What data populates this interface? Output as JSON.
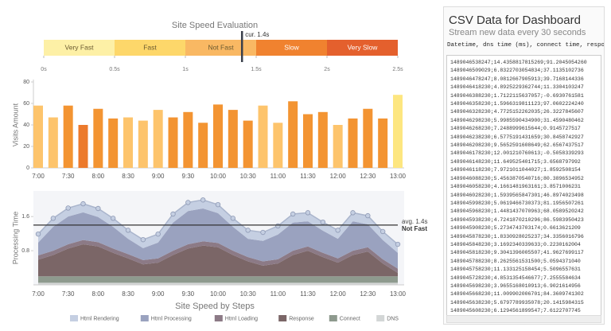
{
  "chart_data": [
    {
      "type": "bullet",
      "title": "Site Speed Evaluation",
      "ranges": [
        {
          "name": "Very Fast",
          "from": 0,
          "to": 0.5,
          "color": "#fdf0a6"
        },
        {
          "name": "Fast",
          "from": 0.5,
          "to": 1,
          "color": "#fdd76a"
        },
        {
          "name": "Not Fast",
          "from": 1,
          "to": 1.5,
          "color": "#f9b863"
        },
        {
          "name": "Slow",
          "from": 1.5,
          "to": 2,
          "color": "#f0822f"
        },
        {
          "name": "Very Slow",
          "from": 2,
          "to": 2.5,
          "color": "#e4602d"
        }
      ],
      "value": 1.4,
      "value_label": "cur. 1.4s",
      "marker_color": "#3a3f4a",
      "xlim": [
        0,
        2.5
      ],
      "xticks": [
        {
          "value": 0,
          "label": "0s"
        },
        {
          "value": 0.5,
          "label": "0.5s"
        },
        {
          "value": 1,
          "label": "1s"
        },
        {
          "value": 1.5,
          "label": "1.5s"
        },
        {
          "value": 2,
          "label": "2s"
        },
        {
          "value": 2.5,
          "label": "2.5s"
        }
      ]
    },
    {
      "type": "bar",
      "y_label": "Visits Amount",
      "categories": [
        "7:00",
        null,
        "7:30",
        null,
        "8:00",
        null,
        "8:30",
        null,
        "9:00",
        null,
        "9:30",
        null,
        "10:00",
        null,
        "10:30",
        null,
        "11:00",
        null,
        "11:30",
        null,
        "12:00",
        null,
        "12:30",
        null,
        "13:00"
      ],
      "values": [
        58,
        47,
        58,
        40,
        55,
        46,
        47,
        44,
        54,
        47,
        52,
        42,
        59,
        54,
        44,
        58,
        42,
        62,
        50,
        52,
        40,
        46,
        55,
        46,
        68
      ],
      "colors": [
        "#fdc46c",
        "#fdc46c",
        "#f39432",
        "#ec7a2c",
        "#f39432",
        "#f39432",
        "#fdc46c",
        "#fdc46c",
        "#fdc46c",
        "#f39432",
        "#f39432",
        "#f39432",
        "#f39432",
        "#f39432",
        "#f39432",
        "#fdc46c",
        "#fdc46c",
        "#f39432",
        "#f39432",
        "#f39432",
        "#fdc46c",
        "#f39432",
        "#f39432",
        "#f39432",
        "#fde680"
      ],
      "ylim": [
        0,
        80
      ],
      "yticks": [
        0,
        20,
        40,
        60,
        80
      ]
    },
    {
      "type": "area",
      "stacked": true,
      "title": "Site Speed by Steps",
      "y_label": "Processing Time",
      "categories": [
        "7:00",
        null,
        "7:30",
        null,
        "8:00",
        null,
        "8:30",
        null,
        "9:00",
        null,
        "9:30",
        null,
        "10:00",
        null,
        "10:30",
        null,
        "11:00",
        null,
        "11:30",
        null,
        "12:00",
        null,
        "12:30",
        null,
        "13:00"
      ],
      "series": [
        {
          "name": "Html Rendering",
          "color": "#c5cfe2",
          "values": [
            0.2,
            0.2,
            0.2,
            0.2,
            0.2,
            0.2,
            0.2,
            0.2,
            0.2,
            0.2,
            0.2,
            0.2,
            0.2,
            0.2,
            0.2,
            0.2,
            0.2,
            0.2,
            0.2,
            0.2,
            0.2,
            0.2,
            0.2,
            0.2,
            0.2
          ]
        },
        {
          "name": "Html Processing",
          "color": "#9aa2bf",
          "values": [
            0.3,
            0.56,
            0.65,
            0.65,
            0.59,
            0.51,
            0.36,
            0.28,
            0.37,
            0.66,
            0.78,
            0.77,
            0.7,
            0.56,
            0.43,
            0.48,
            0.58,
            0.66,
            0.59,
            0.52,
            0.46,
            0.69,
            0.54,
            0.45,
            0.37
          ]
        },
        {
          "name": "Html Loading",
          "color": "#8c7a86",
          "values": [
            0.1,
            0.1,
            0.1,
            0.1,
            0.1,
            0.1,
            0.1,
            0.1,
            0.1,
            0.1,
            0.1,
            0.1,
            0.1,
            0.1,
            0.1,
            0.1,
            0.1,
            0.1,
            0.1,
            0.1,
            0.1,
            0.1,
            0.1,
            0.1,
            0.1
          ]
        },
        {
          "name": "Response",
          "color": "#7b6667",
          "values": [
            0.39,
            0.5,
            0.65,
            0.75,
            0.7,
            0.55,
            0.42,
            0.28,
            0.32,
            0.5,
            0.65,
            0.72,
            0.68,
            0.5,
            0.35,
            0.25,
            0.3,
            0.5,
            0.6,
            0.45,
            0.32,
            0.5,
            0.58,
            0.3,
            0.08
          ]
        },
        {
          "name": "Connect",
          "color": "#8e9a8e",
          "values": [
            0.15,
            0.15,
            0.15,
            0.15,
            0.15,
            0.15,
            0.15,
            0.15,
            0.15,
            0.15,
            0.15,
            0.15,
            0.15,
            0.15,
            0.15,
            0.15,
            0.15,
            0.15,
            0.15,
            0.15,
            0.15,
            0.15,
            0.15,
            0.15,
            0.15
          ]
        },
        {
          "name": "DNS",
          "color": "#d3d6d6",
          "values": [
            0.05,
            0.05,
            0.05,
            0.05,
            0.05,
            0.05,
            0.05,
            0.05,
            0.05,
            0.05,
            0.05,
            0.05,
            0.05,
            0.05,
            0.05,
            0.05,
            0.05,
            0.05,
            0.05,
            0.05,
            0.05,
            0.05,
            0.05,
            0.05,
            0.05
          ]
        }
      ],
      "ylim": [
        0,
        2.2
      ],
      "yticks": [
        0.8,
        1.6
      ],
      "reference": {
        "value": 1.4,
        "label": "avg. 1.4s",
        "note": "Not Fast"
      }
    }
  ],
  "csv_panel": {
    "title": "CSV Data for Dashboard",
    "subtitle": "Stream new data every 30 seconds",
    "header": "Datetime, dns time (ms), connect time, respon",
    "rows": [
      "1489046538247;14.4358817815269;91.2045054260",
      "1489046509029;6.8322703054834;37.1135102736",
      "1489046478247;8.0812667905913;39.7168144336",
      "1489046418230;4.8925229362744;11.3304103247",
      "1489046388230;1.7122115637057;-0.6930761581",
      "1489046358230;1.5966319811123;97.0602224240",
      "1489046328230;4.7725152262035;26.3227845607",
      "1489046298230;5.9985590434900;31.4590480462",
      "1489046268230;7.2488999615644;0.9145727517",
      "1489046238230;6.5775191431659;30.8458742927",
      "1489046208230;9.5652591608649;62.6567437517",
      "1489046178230;12.001210760613;-0.5058339293",
      "1489046148230;11.649525401715;3.6568797992",
      "1489046118230;7.9721011044027;1.8592508154",
      "1489046088230;5.4563870540716;80.3896534952",
      "1489046058230;4.1661481963161;3.8571006231",
      "1489046028230;1.5939565847301;46.8974023498",
      "1489045998230;5.0619466730373;81.1956507261",
      "1489045968230;1.4481437070963;68.0589520242",
      "1489045938230;4.7241870210296;86.5983950423",
      "1489045908230;5.2734743703174;0.6613621209",
      "1489045878230;1.8330928025237;34.3356016796",
      "1489045848230;3.1692340339633;0.2230162004",
      "1489045818230;9.3041396005507;41.9627699117",
      "1489045788230;8.2625561531500;5.0594371040",
      "1489045758230;11.133125158454;5.5096557631",
      "1489045728230;4.8531354546677;7.2555584634",
      "1489045698230;3.9655168010913;6.9021614956",
      "1489045668230;11.009902006701;84.3609741302",
      "1489045638230;5.6797789935078;20.1415984315",
      "1489045608230;6.1294561899547;7.6122707745",
      "1489045578230;8.5601711041642;4.7031820441"
    ]
  }
}
